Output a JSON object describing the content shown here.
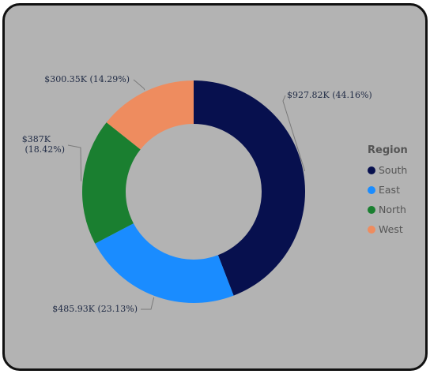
{
  "chart_data": {
    "type": "pie",
    "donut": true,
    "categories": [
      "South",
      "East",
      "North",
      "West"
    ],
    "values": [
      927.82,
      485.93,
      387,
      300.35
    ],
    "value_unit": "$K",
    "percentages": [
      44.16,
      23.13,
      18.42,
      14.29
    ],
    "data_labels": [
      "$927.82K (44.16%)",
      "$485.93K (23.13%)",
      "$387K (18.42%)",
      "$300.35K (14.29%)"
    ],
    "colors": [
      "#07104e",
      "#1a8cff",
      "#1a7f30",
      "#ee8c5f"
    ],
    "legend": {
      "title": "Region",
      "placement": "right"
    }
  }
}
